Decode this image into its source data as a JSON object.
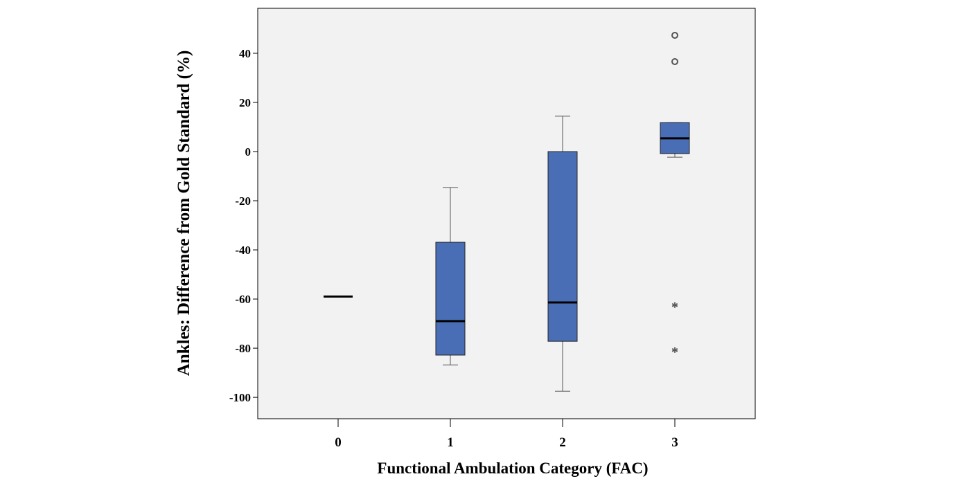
{
  "chart_data": {
    "type": "box",
    "title": "",
    "xlabel": "Functional Ambulation Category (FAC)",
    "ylabel": "Ankles: Difference from Gold Standard (%)",
    "ylim": [
      -108.7,
      58.3
    ],
    "yticks": [
      40,
      20,
      0,
      -20,
      -40,
      -60,
      -80,
      -100
    ],
    "categories": [
      "0",
      "1",
      "2",
      "3"
    ],
    "boxes": [
      {
        "category": "0",
        "whisker_low": -59,
        "q1": -59,
        "median": -59,
        "q3": -59,
        "whisker_high": -59,
        "outliers": [],
        "extremes": []
      },
      {
        "category": "1",
        "whisker_low": -86.8,
        "q1": -82.8,
        "median": -69,
        "q3": -36.9,
        "whisker_high": -14.6,
        "outliers": [],
        "extremes": []
      },
      {
        "category": "2",
        "whisker_low": -97.5,
        "q1": -77.2,
        "median": -61.4,
        "q3": 0,
        "whisker_high": 14.4,
        "outliers": [],
        "extremes": []
      },
      {
        "category": "3",
        "whisker_low": -2.3,
        "q1": -0.8,
        "median": 5.4,
        "q3": 11.8,
        "whisker_high": 11.8,
        "outliers": [
          47.3,
          36.6
        ],
        "extremes": [
          -62.5,
          -80.8
        ]
      }
    ],
    "box_color": "#4a6eb5",
    "plot_background": "#f2f2f2",
    "grid": false
  }
}
